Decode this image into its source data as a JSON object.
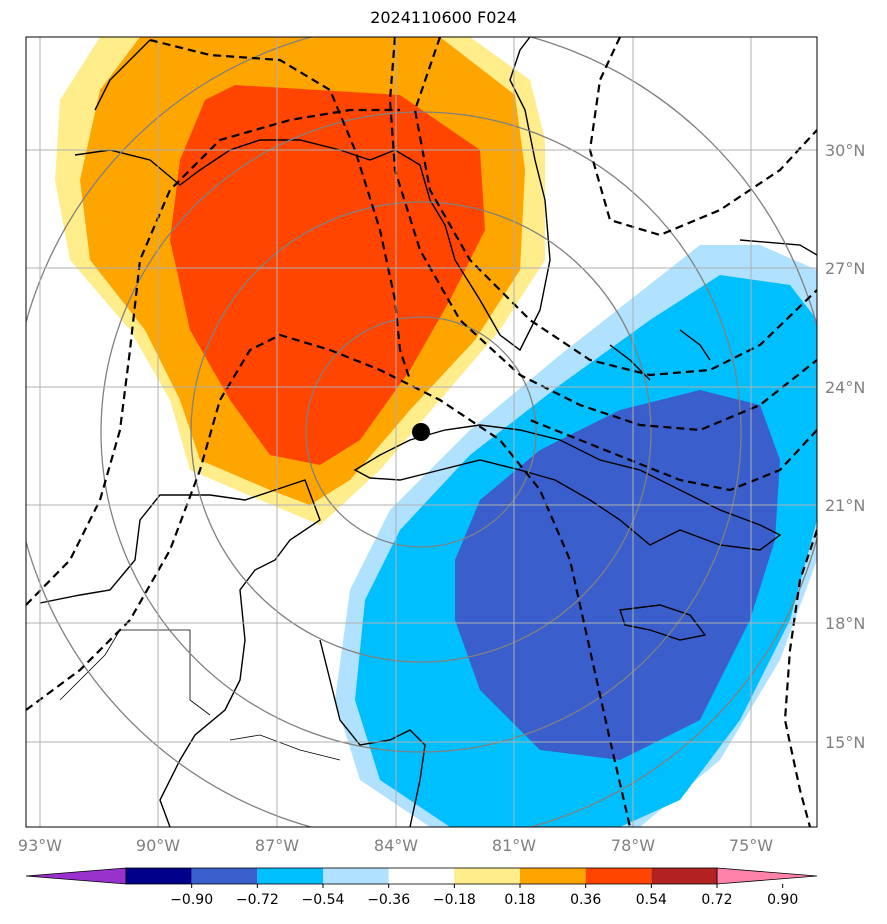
{
  "title": "2024110600 F024",
  "lon_labels": [
    "93°W",
    "90°W",
    "87°W",
    "84°W",
    "81°W",
    "78°W",
    "75°W"
  ],
  "lat_labels": [
    "30°N",
    "27°N",
    "24°N",
    "21°N",
    "18°N",
    "15°N"
  ],
  "colorbar": {
    "ticks": [
      "−0.90",
      "−0.72",
      "−0.54",
      "−0.36",
      "−0.18",
      "0.18",
      "0.36",
      "0.54",
      "0.72",
      "0.90"
    ],
    "colors": [
      "#9932cc",
      "#00008b",
      "#3a5fcd",
      "#00bfff",
      "#b0e2ff",
      "#ffffff",
      "#ffec8b",
      "#ffa500",
      "#ff4500",
      "#b22222",
      "#ff82ab"
    ]
  },
  "storm_center": {
    "lon": -83.3,
    "lat": 22.9
  },
  "map_extent": {
    "lon": [
      -93.3,
      -73.6
    ],
    "lat": [
      13.0,
      33.0
    ]
  }
}
